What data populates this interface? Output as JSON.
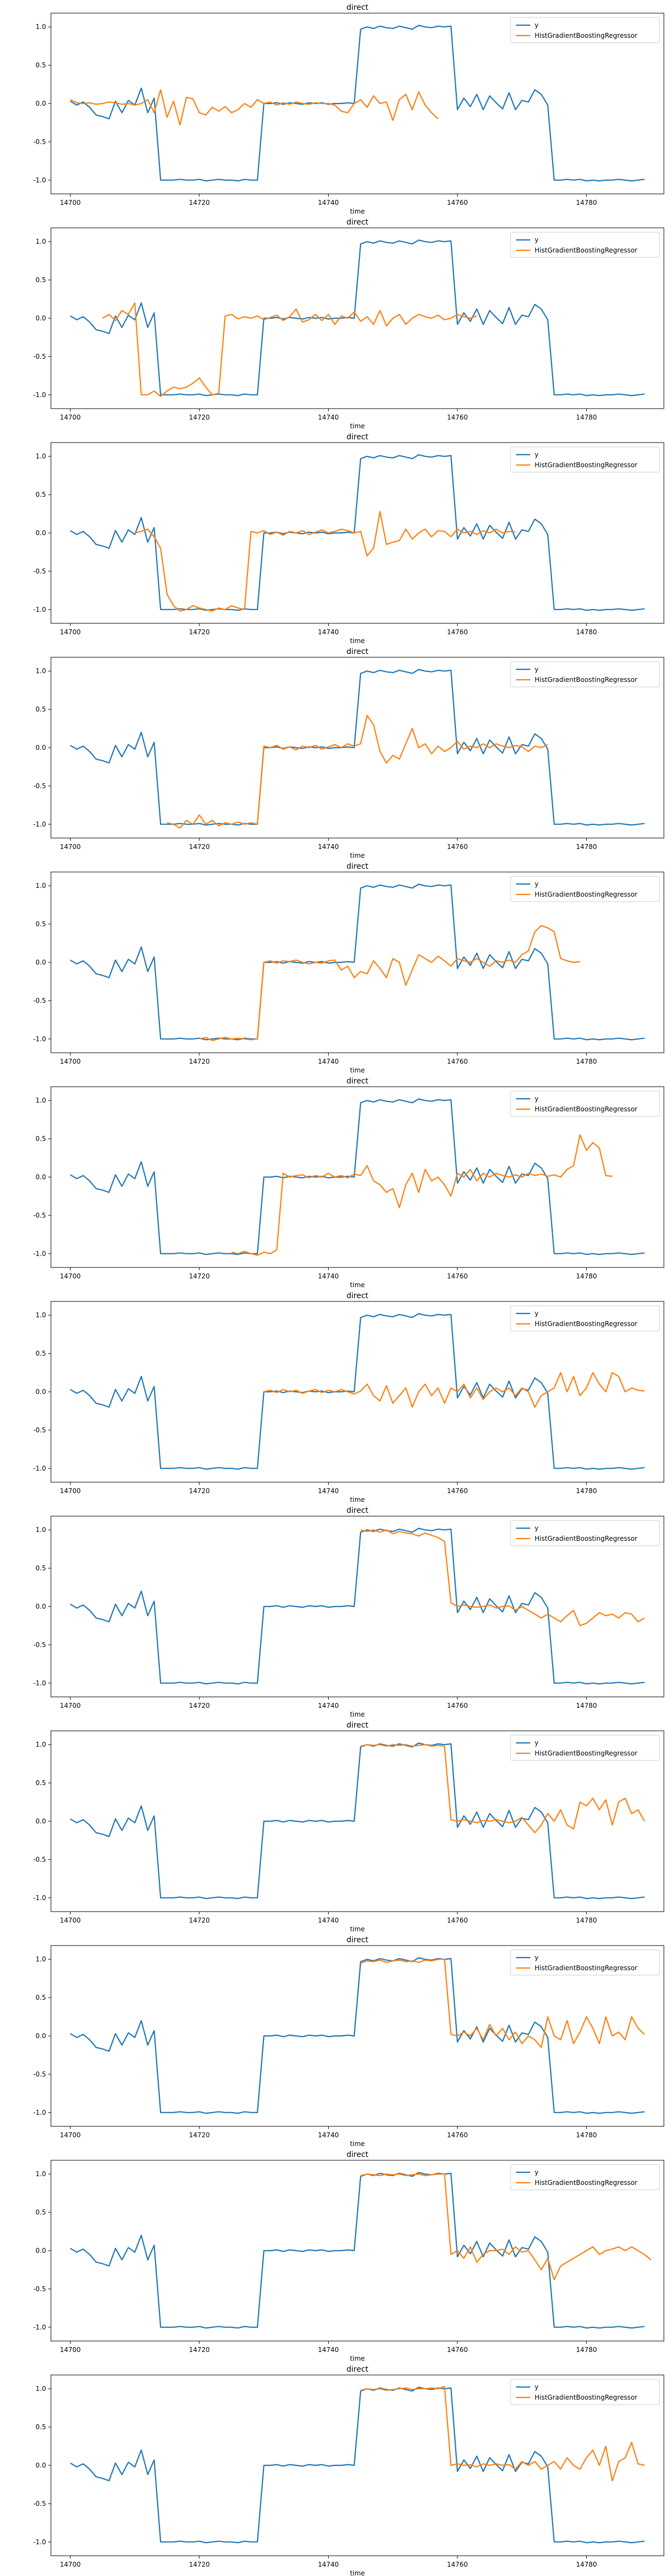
{
  "chart_data": {
    "type": "line",
    "panel_count": 12,
    "title": "direct",
    "xlabel": "time",
    "xlim": [
      14697,
      14792
    ],
    "ylim": [
      -1.18,
      1.18
    ],
    "xticks": [
      14700,
      14720,
      14740,
      14760,
      14780
    ],
    "yticks": [
      -1.0,
      -0.5,
      0.0,
      0.5,
      1.0
    ],
    "grid": false,
    "legend_placement": "top-right",
    "legend": [
      "y",
      "HistGradientBoostingRegressor"
    ],
    "colors": {
      "y": "#1f77b4",
      "prediction": "#ff7f0e"
    },
    "y_x": [
      14700,
      14701,
      14702,
      14703,
      14704,
      14705,
      14706,
      14707,
      14708,
      14709,
      14710,
      14711,
      14712,
      14713,
      14714,
      14715,
      14716,
      14717,
      14718,
      14719,
      14720,
      14721,
      14722,
      14723,
      14724,
      14725,
      14726,
      14727,
      14728,
      14729,
      14730,
      14731,
      14732,
      14733,
      14734,
      14735,
      14736,
      14737,
      14738,
      14739,
      14740,
      14741,
      14742,
      14743,
      14744,
      14745,
      14746,
      14747,
      14748,
      14749,
      14750,
      14751,
      14752,
      14753,
      14754,
      14755,
      14756,
      14757,
      14758,
      14759,
      14760,
      14761,
      14762,
      14763,
      14764,
      14765,
      14766,
      14767,
      14768,
      14769,
      14770,
      14771,
      14772,
      14773,
      14774,
      14775,
      14776,
      14777,
      14778,
      14779,
      14780,
      14781,
      14782,
      14783,
      14784,
      14785,
      14786,
      14787,
      14788,
      14789
    ],
    "y_values": [
      0.03,
      -0.02,
      0.02,
      -0.05,
      -0.15,
      -0.17,
      -0.2,
      0.03,
      -0.12,
      0.04,
      -0.02,
      0.2,
      -0.12,
      0.07,
      -1.0,
      -1.0,
      -1.0,
      -0.99,
      -1.0,
      -1.0,
      -0.99,
      -1.01,
      -1.0,
      -0.99,
      -1.0,
      -1.0,
      -1.01,
      -0.99,
      -1.0,
      -1.0,
      0.0,
      0.0,
      0.01,
      -0.01,
      0.01,
      0.0,
      -0.01,
      0.01,
      0.0,
      0.01,
      -0.01,
      0.0,
      0.0,
      0.01,
      0.0,
      0.97,
      1.0,
      0.98,
      1.01,
      0.99,
      0.98,
      1.01,
      0.99,
      0.97,
      1.02,
      1.0,
      0.99,
      1.01,
      1.0,
      1.01,
      -0.08,
      0.07,
      -0.04,
      0.12,
      -0.08,
      0.1,
      0.01,
      -0.07,
      0.14,
      -0.08,
      0.04,
      0.02,
      0.18,
      0.12,
      -0.02,
      -1.0,
      -1.0,
      -0.99,
      -1.0,
      -0.99,
      -1.01,
      -1.0,
      -1.01,
      -1.0,
      -1.0,
      -0.99,
      -1.0,
      -1.01,
      -1.0,
      -0.99
    ],
    "series": [
      {
        "name": "HistGradientBoostingRegressor",
        "x_start": 14700,
        "values": [
          0.05,
          0.01,
          0.0,
          0.01,
          -0.01,
          0.0,
          0.02,
          0.01,
          -0.01,
          0.0,
          -0.02,
          0.0,
          0.05,
          -0.12,
          0.18,
          -0.18,
          0.03,
          -0.28,
          0.08,
          0.06,
          -0.12,
          -0.15,
          -0.05,
          -0.1,
          -0.04,
          -0.12,
          -0.08,
          0.0,
          -0.05,
          0.05,
          0.0,
          0.02,
          -0.02,
          0.01,
          -0.01,
          0.02,
          0.0,
          -0.01,
          0.01,
          0.0,
          0.0,
          -0.02,
          -0.1,
          -0.12,
          0.0,
          0.05,
          -0.05,
          0.1,
          0.0,
          0.02,
          -0.22,
          0.05,
          0.12,
          -0.08,
          0.15,
          -0.02,
          -0.12,
          -0.2
        ]
      },
      {
        "name": "HistGradientBoostingRegressor",
        "x_start": 14705,
        "values": [
          0.0,
          0.05,
          -0.03,
          0.1,
          0.05,
          0.2,
          -1.0,
          -1.0,
          -0.95,
          -1.02,
          -0.95,
          -0.9,
          -0.92,
          -0.9,
          -0.85,
          -0.78,
          -0.9,
          -1.0,
          -0.98,
          0.03,
          0.05,
          -0.01,
          0.02,
          0.0,
          0.03,
          -0.02,
          0.01,
          0.04,
          -0.03,
          0.02,
          0.12,
          -0.05,
          -0.02,
          0.05,
          -0.03,
          0.05,
          -0.08,
          0.03,
          0.0,
          0.08,
          -0.04,
          0.02,
          -0.08,
          0.1,
          -0.1,
          0.0,
          0.05,
          -0.08,
          0.0,
          0.05,
          0.02,
          0.0,
          0.04,
          -0.02,
          0.0,
          0.05,
          0.02,
          0.0,
          0.03
        ]
      },
      {
        "name": "HistGradientBoostingRegressor",
        "x_start": 14710,
        "values": [
          0.0,
          0.02,
          0.05,
          -0.05,
          -0.2,
          -0.8,
          -0.95,
          -1.02,
          -1.0,
          -0.95,
          -0.98,
          -1.0,
          -1.02,
          -0.98,
          -1.0,
          -0.95,
          -0.98,
          -1.0,
          0.02,
          0.0,
          0.03,
          -0.02,
          0.01,
          -0.03,
          0.02,
          0.0,
          0.03,
          -0.02,
          0.01,
          0.04,
          0.0,
          0.02,
          0.05,
          0.03,
          0.0,
          0.02,
          -0.3,
          -0.2,
          0.28,
          -0.15,
          -0.12,
          -0.1,
          0.05,
          -0.08,
          0.0,
          0.05,
          -0.05,
          0.03,
          0.02,
          -0.05,
          0.05,
          0.0,
          0.02,
          -0.02,
          0.03,
          0.0,
          0.05,
          0.0,
          0.02,
          0.01
        ]
      },
      {
        "name": "HistGradientBoostingRegressor",
        "x_start": 14715,
        "values": [
          -0.98,
          -1.0,
          -1.05,
          -0.95,
          -1.0,
          -0.88,
          -1.0,
          -0.95,
          -1.02,
          -0.98,
          -1.0,
          -0.97,
          -1.0,
          -0.98,
          -1.0,
          0.02,
          0.0,
          0.03,
          -0.02,
          0.01,
          -0.03,
          0.02,
          0.0,
          0.03,
          -0.02,
          0.01,
          0.04,
          0.0,
          0.05,
          0.02,
          0.05,
          0.42,
          0.3,
          -0.05,
          -0.2,
          -0.1,
          -0.15,
          0.05,
          0.25,
          0.0,
          0.05,
          -0.08,
          0.02,
          -0.05,
          0.0,
          0.08,
          -0.02,
          0.02,
          0.0,
          0.05,
          0.0,
          0.05,
          0.02,
          0.0,
          0.03,
          0.01,
          -0.05,
          0.02,
          0.0,
          0.04
        ]
      },
      {
        "name": "HistGradientBoostingRegressor",
        "x_start": 14720,
        "values": [
          -1.0,
          -0.98,
          -1.02,
          -1.0,
          -0.98,
          -1.0,
          -0.99,
          -1.0,
          -1.01,
          -1.0,
          0.0,
          0.02,
          -0.01,
          0.02,
          0.01,
          0.03,
          0.0,
          -0.02,
          0.0,
          -0.01,
          0.02,
          0.03,
          -0.1,
          -0.05,
          -0.2,
          -0.12,
          -0.15,
          0.02,
          -0.08,
          -0.2,
          0.05,
          0.0,
          -0.3,
          -0.1,
          0.1,
          0.05,
          0.0,
          0.08,
          0.02,
          -0.05,
          0.05,
          0.02,
          0.0,
          0.05,
          0.0,
          -0.05,
          0.02,
          0.0,
          0.03,
          0.0,
          0.1,
          0.15,
          0.4,
          0.48,
          0.45,
          0.4,
          0.05,
          0.02,
          0.0,
          0.01
        ]
      },
      {
        "name": "HistGradientBoostingRegressor",
        "x_start": 14725,
        "values": [
          -0.98,
          -1.0,
          -0.97,
          -1.0,
          -1.02,
          -0.98,
          -1.0,
          -0.95,
          0.05,
          0.0,
          0.02,
          0.03,
          -0.01,
          0.02,
          0.0,
          0.05,
          0.0,
          0.02,
          -0.01,
          0.04,
          0.02,
          0.15,
          -0.05,
          -0.1,
          -0.2,
          -0.15,
          -0.4,
          -0.1,
          0.05,
          -0.2,
          0.1,
          -0.05,
          0.0,
          -0.1,
          -0.25,
          0.05,
          0.0,
          0.1,
          -0.05,
          0.05,
          0.0,
          0.05,
          0.02,
          0.0,
          0.03,
          0.0,
          0.05,
          0.02,
          0.04,
          0.01,
          0.03,
          0.0,
          0.1,
          0.15,
          0.55,
          0.35,
          0.45,
          0.38,
          0.02,
          0.01
        ]
      },
      {
        "name": "HistGradientBoostingRegressor",
        "x_start": 14730,
        "values": [
          0.0,
          0.02,
          -0.01,
          0.03,
          0.0,
          0.02,
          -0.02,
          0.01,
          0.03,
          -0.01,
          0.02,
          0.0,
          0.03,
          0.0,
          -0.03,
          0.01,
          0.1,
          -0.05,
          -0.12,
          0.08,
          -0.15,
          -0.05,
          0.05,
          -0.2,
          0.0,
          0.1,
          -0.05,
          0.05,
          -0.15,
          0.05,
          0.0,
          0.1,
          -0.08,
          0.05,
          -0.1,
          0.0,
          0.05,
          0.0,
          0.05,
          -0.05,
          0.05,
          0.0,
          -0.2,
          -0.05,
          0.0,
          0.05,
          0.25,
          0.0,
          0.2,
          -0.05,
          0.05,
          0.25,
          0.1,
          0.0,
          0.25,
          0.2,
          0.0,
          0.05,
          0.02,
          0.01
        ]
      },
      {
        "name": "HistGradientBoostingRegressor",
        "x_start": 14745,
        "values": [
          1.0,
          0.98,
          1.0,
          0.97,
          1.0,
          0.95,
          0.98,
          0.96,
          0.95,
          0.92,
          0.96,
          0.93,
          0.9,
          0.85,
          0.05,
          0.0,
          0.02,
          0.0,
          -0.01,
          0.0,
          0.02,
          -0.02,
          0.0,
          0.01,
          -0.05,
          0.0,
          -0.05,
          -0.1,
          -0.15,
          -0.1,
          -0.15,
          -0.2,
          -0.12,
          -0.05,
          -0.25,
          -0.22,
          -0.15,
          -0.08,
          -0.12,
          -0.1,
          -0.15,
          -0.08,
          -0.1,
          -0.2,
          -0.15
        ]
      },
      {
        "name": "HistGradientBoostingRegressor",
        "x_start": 14745,
        "values": [
          0.98,
          1.0,
          0.99,
          1.0,
          0.98,
          1.0,
          0.99,
          1.0,
          0.98,
          0.99,
          1.0,
          0.98,
          0.99,
          0.98,
          0.02,
          0.0,
          0.02,
          0.0,
          -0.02,
          0.01,
          0.0,
          0.02,
          0.0,
          -0.02,
          0.0,
          0.05,
          -0.05,
          -0.15,
          -0.05,
          0.1,
          0.0,
          0.15,
          -0.05,
          -0.1,
          0.25,
          0.2,
          0.3,
          0.15,
          0.28,
          -0.05,
          0.25,
          0.3,
          0.1,
          0.15,
          0.0
        ]
      },
      {
        "name": "HistGradientBoostingRegressor",
        "x_start": 14745,
        "values": [
          0.95,
          0.98,
          0.97,
          0.99,
          0.96,
          0.98,
          0.99,
          0.97,
          0.98,
          0.96,
          0.99,
          0.98,
          1.0,
          1.0,
          0.02,
          0.0,
          0.05,
          0.0,
          0.1,
          -0.05,
          0.15,
          0.0,
          0.1,
          -0.05,
          0.05,
          -0.1,
          0.0,
          -0.05,
          -0.15,
          0.25,
          0.0,
          -0.05,
          0.2,
          -0.1,
          0.05,
          0.25,
          0.1,
          -0.1,
          0.25,
          0.0,
          0.05,
          -0.05,
          0.25,
          0.1,
          0.02
        ]
      },
      {
        "name": "HistGradientBoostingRegressor",
        "x_start": 14745,
        "values": [
          0.98,
          1.0,
          0.99,
          0.98,
          1.0,
          0.99,
          1.0,
          0.98,
          0.99,
          1.0,
          0.98,
          0.99,
          1.0,
          1.0,
          -0.05,
          0.0,
          -0.1,
          0.05,
          -0.15,
          -0.05,
          0.0,
          0.0,
          0.02,
          -0.05,
          0.05,
          -0.02,
          0.0,
          -0.12,
          -0.25,
          -0.1,
          -0.38,
          -0.2,
          -0.15,
          -0.1,
          -0.05,
          0.0,
          0.05,
          -0.05,
          0.0,
          0.02,
          0.05,
          0.0,
          0.05,
          0.0,
          -0.05,
          -0.12
        ]
      },
      {
        "name": "HistGradientBoostingRegressor",
        "x_start": 14745,
        "values": [
          0.98,
          1.0,
          0.99,
          1.0,
          0.98,
          0.99,
          1.0,
          1.01,
          0.99,
          1.0,
          1.0,
          1.01,
          1.0,
          1.03,
          0.0,
          0.02,
          0.0,
          0.01,
          -0.02,
          0.02,
          0.0,
          0.02,
          0.0,
          0.01,
          -0.05,
          0.05,
          0.0,
          0.05,
          -0.05,
          0.0,
          0.05,
          -0.05,
          0.1,
          0.0,
          -0.05,
          0.1,
          0.2,
          0.0,
          0.25,
          -0.2,
          0.05,
          0.1,
          0.3,
          0.02,
          0.0
        ]
      }
    ]
  }
}
